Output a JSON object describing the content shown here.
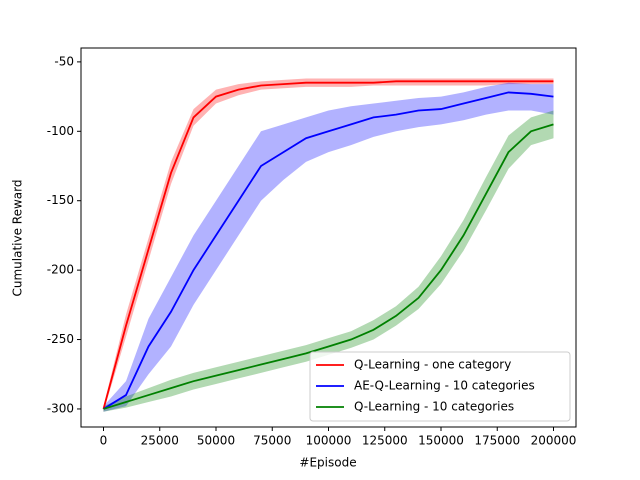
{
  "chart_data": {
    "type": "line",
    "x_label": "#Episode",
    "y_label": "Cumulative Reward",
    "x": [
      0,
      10000,
      20000,
      30000,
      40000,
      50000,
      60000,
      70000,
      80000,
      90000,
      100000,
      110000,
      120000,
      130000,
      140000,
      150000,
      160000,
      170000,
      180000,
      190000,
      200000
    ],
    "series": [
      {
        "name": "Q-Learning - one category",
        "color": "#ff0000",
        "values": [
          -300,
          -240,
          -185,
          -130,
          -90,
          -75,
          -70,
          -67,
          -66,
          -65,
          -65,
          -65,
          -65,
          -64,
          -64,
          -64,
          -64,
          -64,
          -64,
          -64,
          -64
        ],
        "lower": [
          -302,
          -248,
          -193,
          -138,
          -96,
          -80,
          -74,
          -70,
          -69,
          -68,
          -68,
          -68,
          -67,
          -67,
          -67,
          -67,
          -67,
          -67,
          -66,
          -66,
          -66
        ],
        "upper": [
          -298,
          -232,
          -177,
          -122,
          -84,
          -70,
          -66,
          -64,
          -63,
          -62,
          -62,
          -62,
          -62,
          -62,
          -62,
          -62,
          -62,
          -62,
          -62,
          -62,
          -62
        ]
      },
      {
        "name": "AE-Q-Learning - 10 categories",
        "color": "#0000ff",
        "values": [
          -300,
          -290,
          -255,
          -230,
          -200,
          -175,
          -150,
          -125,
          -115,
          -105,
          -100,
          -95,
          -90,
          -88,
          -85,
          -84,
          -80,
          -76,
          -72,
          -73,
          -75
        ],
        "lower": [
          -302,
          -298,
          -275,
          -255,
          -225,
          -200,
          -175,
          -150,
          -135,
          -122,
          -115,
          -110,
          -104,
          -100,
          -97,
          -95,
          -92,
          -88,
          -85,
          -85,
          -88
        ],
        "upper": [
          -298,
          -280,
          -235,
          -205,
          -175,
          -150,
          -125,
          -100,
          -95,
          -90,
          -85,
          -82,
          -80,
          -78,
          -76,
          -75,
          -72,
          -68,
          -65,
          -66,
          -66
        ]
      },
      {
        "name": "Q-Learning - 10 categories",
        "color": "#008000",
        "values": [
          -300,
          -295,
          -290,
          -285,
          -280,
          -276,
          -272,
          -268,
          -264,
          -260,
          -255,
          -250,
          -243,
          -233,
          -220,
          -200,
          -175,
          -145,
          -115,
          -100,
          -95
        ],
        "lower": [
          -302,
          -299,
          -295,
          -291,
          -286,
          -282,
          -278,
          -274,
          -270,
          -266,
          -261,
          -256,
          -250,
          -240,
          -228,
          -210,
          -186,
          -157,
          -127,
          -110,
          -105
        ],
        "upper": [
          -298,
          -291,
          -285,
          -279,
          -274,
          -270,
          -266,
          -262,
          -258,
          -254,
          -249,
          -244,
          -236,
          -226,
          -212,
          -190,
          -164,
          -133,
          -103,
          -90,
          -85
        ]
      }
    ],
    "xlim": [
      -10000,
      210000
    ],
    "ylim": [
      -313,
      -40
    ],
    "xticks": [
      0,
      25000,
      50000,
      75000,
      100000,
      125000,
      150000,
      175000,
      200000
    ],
    "yticks": [
      -300,
      -250,
      -200,
      -150,
      -100,
      -50
    ],
    "legend": "lower right"
  }
}
